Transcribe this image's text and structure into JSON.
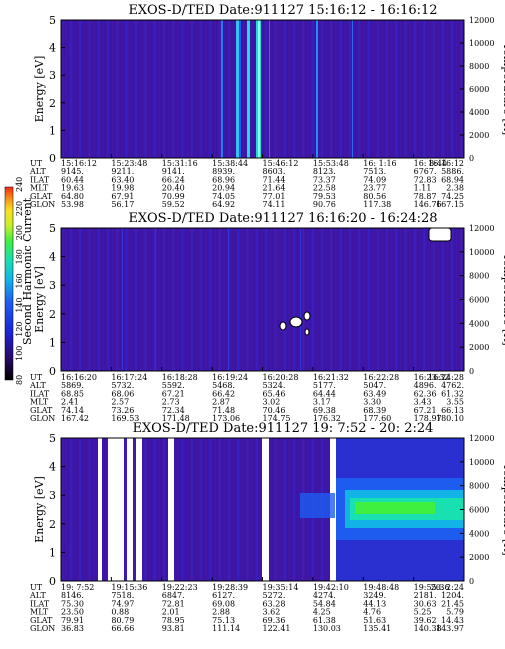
{
  "chart_data": [
    {
      "type": "heatmap",
      "title": "EXOS-D/TED   Date:911127   15:16:12 -  16:16:12",
      "ylabel": "Energy [eV]",
      "y2label": "Temperature [K]",
      "yticks": [
        "0",
        "1",
        "2",
        "3",
        "4",
        "5"
      ],
      "y2ticks": [
        "0",
        "2000",
        "4000",
        "6000",
        "8000",
        "10000",
        "12000"
      ],
      "orbit_table": {
        "rows": [
          "UT",
          "ALT",
          "ILAT",
          "MLT",
          "GLAT",
          "GLON"
        ],
        "columns": [
          [
            "15:16:12",
            "9145.",
            "60.44",
            "19.63",
            "64.80",
            "53.98"
          ],
          [
            "15:23:48",
            "9211.",
            "63.40",
            "19.98",
            "67.91",
            "56.17"
          ],
          [
            "15:31:16",
            "9141.",
            "66.24",
            "20.40",
            "70.99",
            "59.52"
          ],
          [
            "15:38:44",
            "8939.",
            "68.96",
            "20.94",
            "74.05",
            "64.92"
          ],
          [
            "15:46:12",
            "8603.",
            "71.44",
            "21.64",
            "77.01",
            "74.11"
          ],
          [
            "15:53:48",
            "8123.",
            "73.37",
            "22.58",
            "79.53",
            "90.76"
          ],
          [
            "16: 1:16",
            "7513.",
            "74.09",
            "23.77",
            "80.56",
            "117.38"
          ],
          [
            "16: 8:44",
            "6767.",
            "72.83",
            "1.11",
            "78.87",
            "146.76"
          ],
          [
            "16:16:12",
            "5886.",
            "68.94",
            "2.38",
            "74.25",
            "167.15"
          ]
        ]
      }
    },
    {
      "type": "heatmap",
      "title": "EXOS-D/TED   Date:911127   16:16:20 -  16:24:28",
      "ylabel": "Energy [eV]",
      "y2label": "Temperature [K]",
      "yticks": [
        "0",
        "1",
        "2",
        "3",
        "4",
        "5"
      ],
      "y2ticks": [
        "0",
        "2000",
        "4000",
        "6000",
        "8000",
        "10000",
        "12000"
      ],
      "orbit_table": {
        "rows": [
          "UT",
          "ALT",
          "ILAT",
          "MLT",
          "GLAT",
          "GLON"
        ],
        "columns": [
          [
            "16:16:20",
            "5869.",
            "68.85",
            "2.41",
            "74.14",
            "167.42"
          ],
          [
            "16:17:24",
            "5732.",
            "68.06",
            "2.57",
            "73.26",
            "169.53"
          ],
          [
            "16:18:28",
            "5592.",
            "67.21",
            "2.73",
            "72.34",
            "171.48"
          ],
          [
            "16:19:24",
            "5468.",
            "66.42",
            "2.87",
            "71.48",
            "173.06"
          ],
          [
            "16:20:28",
            "5324.",
            "65.46",
            "3.02",
            "70.46",
            "174.75"
          ],
          [
            "16:21:32",
            "5177.",
            "64.44",
            "3.17",
            "69.38",
            "176.32"
          ],
          [
            "16:22:28",
            "5047.",
            "63.49",
            "3.30",
            "68.39",
            "177.60"
          ],
          [
            "16:23:32",
            "4896.",
            "62.36",
            "3.43",
            "67.21",
            "178.97"
          ],
          [
            "16:24:28",
            "4762.",
            "61.32",
            "3.55",
            "66.13",
            "180.10"
          ]
        ]
      }
    },
    {
      "type": "heatmap",
      "title": "EXOS-D/TED   Date:911127   19: 7:52 -  20: 2:24",
      "ylabel": "Energy [eV]",
      "y2label": "Temperature [K]",
      "yticks": [
        "0",
        "1",
        "2",
        "3",
        "4",
        "5"
      ],
      "y2ticks": [
        "0",
        "2000",
        "4000",
        "6000",
        "8000",
        "10000",
        "12000"
      ],
      "orbit_table": {
        "rows": [
          "UT",
          "ALT",
          "ILAT",
          "MLT",
          "GLAT",
          "GLON"
        ],
        "columns": [
          [
            "19: 7:52",
            "8146.",
            "75.30",
            "23.50",
            "79.91",
            "36.83"
          ],
          [
            "19:15:36",
            "7518.",
            "74.97",
            "0.88",
            "80.79",
            "66.66"
          ],
          [
            "19:22:23",
            "6847.",
            "72.81",
            "2.01",
            "78.95",
            "93.81"
          ],
          [
            "19:28:39",
            "6127.",
            "69.08",
            "2.88",
            "75.13",
            "111.14"
          ],
          [
            "19:35:14",
            "5272.",
            "63.28",
            "3.62",
            "69.36",
            "122.41"
          ],
          [
            "19:42:10",
            "4274.",
            "54.84",
            "4.25",
            "61.38",
            "130.03"
          ],
          [
            "19:48:48",
            "3249.",
            "44.13",
            "4.76",
            "51.63",
            "135.41"
          ],
          [
            "19:55:36",
            "2181.",
            "30.63",
            "5.25",
            "39.62",
            "140.38"
          ],
          [
            "20: 2:24",
            "1204.",
            "21.45",
            "5.79",
            "14.43",
            "143.97"
          ]
        ]
      }
    }
  ],
  "colorbar": {
    "label": "Second Harmonic Current",
    "ticks": [
      "80",
      "100",
      "120",
      "140",
      "160",
      "180",
      "200",
      "220",
      "240"
    ],
    "colors": [
      "#000000",
      "#2a0a6e",
      "#1a24d8",
      "#1e5cf0",
      "#12b4e8",
      "#18e0b0",
      "#40f040",
      "#c8f028",
      "#f8e020",
      "#f89018",
      "#f82810"
    ]
  },
  "colors": {
    "background": "#4018a8",
    "high": "#18e0b0",
    "peak": "#40f040"
  }
}
